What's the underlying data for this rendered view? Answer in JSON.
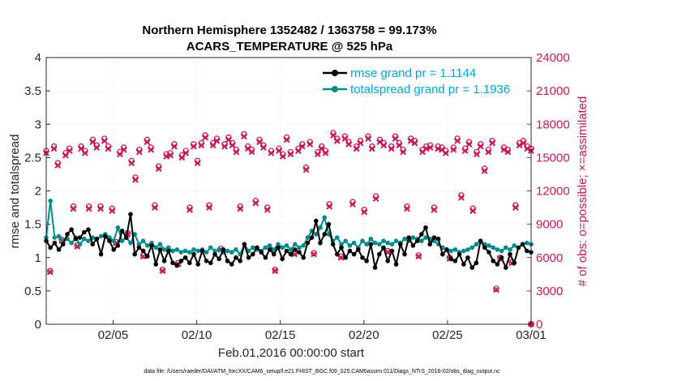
{
  "chart_data": {
    "type": "line",
    "title": "Northern Hemisphere 1352482 / 1363758 = 99.173%",
    "subtitle": "ACARS_TEMPERATURE @ 525 hPa",
    "xlabel": "Feb.01,2016 00:00:00 start",
    "ylabel": "rmse and totalspread",
    "ylabel_right": "# of obs: o=possible; ×=assimilated",
    "footer": "data file: /Users/raeder/DAI/ATM_forcXX/CAM6_setup/f.e21.FHIST_BGC.f09_025.CAM6assim.011/Diags_NTrS_2016-02/obs_diag_output.nc",
    "xlim": [
      1,
      30
    ],
    "ylim": [
      0,
      4
    ],
    "ylim_right": [
      0,
      24000
    ],
    "x_ticks": [
      5,
      10,
      15,
      20,
      25,
      30
    ],
    "x_tick_labels": [
      "02/05",
      "02/10",
      "02/15",
      "02/20",
      "02/25",
      "03/01"
    ],
    "y_ticks": [
      0,
      0.5,
      1,
      1.5,
      2,
      2.5,
      3,
      3.5,
      4
    ],
    "y_tick_labels": [
      "0",
      "0.5",
      "1",
      "1.5",
      "2",
      "2.5",
      "3",
      "3.5",
      "4"
    ],
    "y_ticks_right": [
      0,
      3000,
      6000,
      9000,
      12000,
      15000,
      18000,
      21000,
      24000
    ],
    "y_tick_labels_right": [
      "0",
      "3000",
      "6000",
      "9000",
      "12000",
      "15000",
      "18000",
      "21000",
      "24000"
    ],
    "grid": true,
    "legend_position": "top-right",
    "series": [
      {
        "name": "rmse grand pr = 1.1144",
        "color": "#000000",
        "marker": "circle",
        "values": [
          1.25,
          1.15,
          1.22,
          1.12,
          1.2,
          1.35,
          1.42,
          1.28,
          1.3,
          1.38,
          1.42,
          1.2,
          1.28,
          1.05,
          1.32,
          1.25,
          1.12,
          1.18,
          1.4,
          1.3,
          1.65,
          1.05,
          1.15,
          1.1,
          1.02,
          1.18,
          0.9,
          1.12,
          0.95,
          1.1,
          0.92,
          0.88,
          0.95,
          1.0,
          0.92,
          1.05,
          0.9,
          1.1,
          0.95,
          0.92,
          1.05,
          0.98,
          1.12,
          0.95,
          0.9,
          1.0,
          0.95,
          1.2,
          1.0,
          1.05,
          1.15,
          1.08,
          1.0,
          1.12,
          1.05,
          1.15,
          0.98,
          1.1,
          1.05,
          1.12,
          1.08,
          1.0,
          1.22,
          1.3,
          1.55,
          1.22,
          1.35,
          1.5,
          1.2,
          1.05,
          1.15,
          1.0,
          1.1,
          1.05,
          1.12,
          1.0,
          0.95,
          1.2,
          0.85,
          1.05,
          1.15,
          0.95,
          1.1,
          0.9,
          1.2,
          1.05,
          1.3,
          1.18,
          1.25,
          1.35,
          1.45,
          1.2,
          1.3,
          1.28,
          1.05,
          1.12,
          0.98,
          0.95,
          1.05,
          0.9,
          1.0,
          0.85,
          0.92,
          1.25,
          1.15,
          1.08,
          0.95,
          0.9,
          1.0,
          0.85,
          1.05,
          0.92,
          1.15,
          1.2,
          1.1,
          1.08
        ]
      },
      {
        "name": "totalspread grand pr = 1.1936",
        "color": "#008b8b",
        "marker": "circle",
        "values": [
          1.3,
          1.85,
          1.3,
          1.32,
          1.25,
          1.28,
          1.22,
          1.3,
          1.2,
          1.28,
          1.25,
          1.3,
          1.28,
          1.32,
          1.35,
          1.3,
          1.25,
          1.45,
          1.25,
          1.3,
          1.22,
          1.35,
          1.2,
          1.25,
          1.18,
          1.22,
          1.15,
          1.2,
          1.12,
          1.15,
          1.1,
          1.12,
          1.08,
          1.1,
          1.08,
          1.12,
          1.1,
          1.12,
          1.08,
          1.15,
          1.1,
          1.12,
          1.08,
          1.1,
          1.08,
          1.12,
          1.05,
          1.2,
          1.1,
          1.15,
          1.12,
          1.1,
          1.15,
          1.18,
          1.12,
          1.2,
          1.15,
          1.18,
          1.12,
          1.2,
          1.15,
          1.18,
          1.3,
          1.4,
          1.35,
          1.45,
          1.6,
          1.35,
          1.25,
          1.3,
          1.2,
          1.25,
          1.18,
          1.22,
          1.15,
          1.25,
          1.2,
          1.28,
          1.22,
          1.2,
          1.25,
          1.22,
          1.2,
          1.25,
          1.22,
          1.28,
          1.25,
          1.3,
          1.28,
          1.25,
          1.3,
          1.28,
          1.25,
          1.2,
          1.15,
          1.12,
          1.1,
          1.12,
          1.08,
          1.1,
          1.12,
          1.15,
          1.2,
          1.25,
          1.2,
          1.18,
          1.15,
          1.12,
          1.1,
          1.15,
          1.12,
          1.18,
          1.15,
          1.2,
          1.22,
          1.2
        ]
      },
      {
        "name": "possible",
        "color": "#c8175a",
        "marker": "circle",
        "axis": "right",
        "values": [
          15600,
          4800,
          16000,
          14500,
          7600,
          15400,
          15800,
          10600,
          7100,
          16000,
          15600,
          10600,
          16600,
          16100,
          10600,
          16700,
          16000,
          10400,
          7400,
          15500,
          15900,
          8200,
          14700,
          13200,
          15700,
          6200,
          16600,
          15900,
          10700,
          14200,
          4900,
          15300,
          15400,
          16200,
          5500,
          15200,
          15600,
          10500,
          16200,
          14700,
          16300,
          17000,
          10700,
          16300,
          16700,
          6800,
          16200,
          16800,
          16300,
          15700,
          10600,
          17100,
          16000,
          15700,
          11100,
          16600,
          16100,
          10500,
          15600,
          4900,
          15800,
          15300,
          16800,
          15500,
          6400,
          15800,
          16200,
          14100,
          16400,
          6400,
          15500,
          16000,
          15600,
          10800,
          17200,
          16700,
          6100,
          16900,
          16400,
          11000,
          16000,
          16500,
          10300,
          16900,
          16000,
          11500,
          16600,
          16300,
          6600,
          16000,
          16900,
          16300,
          15700,
          10600,
          16700,
          16500,
          6200,
          15700,
          16000,
          16100,
          10500,
          16000,
          15900,
          15600,
          6000,
          15900,
          16700,
          11600,
          15800,
          16400,
          10400,
          15500,
          16200,
          14000,
          15700,
          16500,
          3200,
          6000,
          15900,
          15700,
          5600,
          10700,
          16300,
          16500,
          16000,
          15800
        ]
      },
      {
        "name": "assimilated",
        "color": "#c8175a",
        "marker": "x",
        "axis": "right",
        "values": [
          15400,
          4700,
          15800,
          14300,
          7500,
          15200,
          15600,
          10400,
          7000,
          15800,
          15400,
          10400,
          16400,
          15900,
          10400,
          16500,
          15800,
          10200,
          7300,
          15300,
          15700,
          8100,
          14500,
          13000,
          15500,
          6100,
          16400,
          15700,
          10500,
          14000,
          4800,
          15100,
          15200,
          16000,
          5400,
          15000,
          15400,
          10300,
          16000,
          14500,
          16100,
          16800,
          10500,
          16100,
          16500,
          6700,
          16000,
          16600,
          16100,
          15500,
          10400,
          16900,
          15800,
          15500,
          10900,
          16400,
          15900,
          10300,
          15400,
          4800,
          15600,
          15100,
          16600,
          15300,
          6300,
          15600,
          16000,
          13900,
          16200,
          6300,
          15300,
          15800,
          15400,
          10600,
          17000,
          16500,
          6000,
          16700,
          16200,
          10800,
          15800,
          16300,
          10100,
          16700,
          15800,
          11300,
          16400,
          16100,
          6500,
          15800,
          16700,
          16100,
          15500,
          10400,
          16500,
          16300,
          6100,
          15500,
          15800,
          15900,
          10300,
          15800,
          15700,
          15400,
          5900,
          15700,
          16500,
          11400,
          15600,
          16200,
          10200,
          15300,
          16000,
          13800,
          15500,
          16300,
          3100,
          5900,
          15700,
          15500,
          5500,
          10500,
          16100,
          16300,
          15800,
          15600
        ]
      }
    ]
  }
}
